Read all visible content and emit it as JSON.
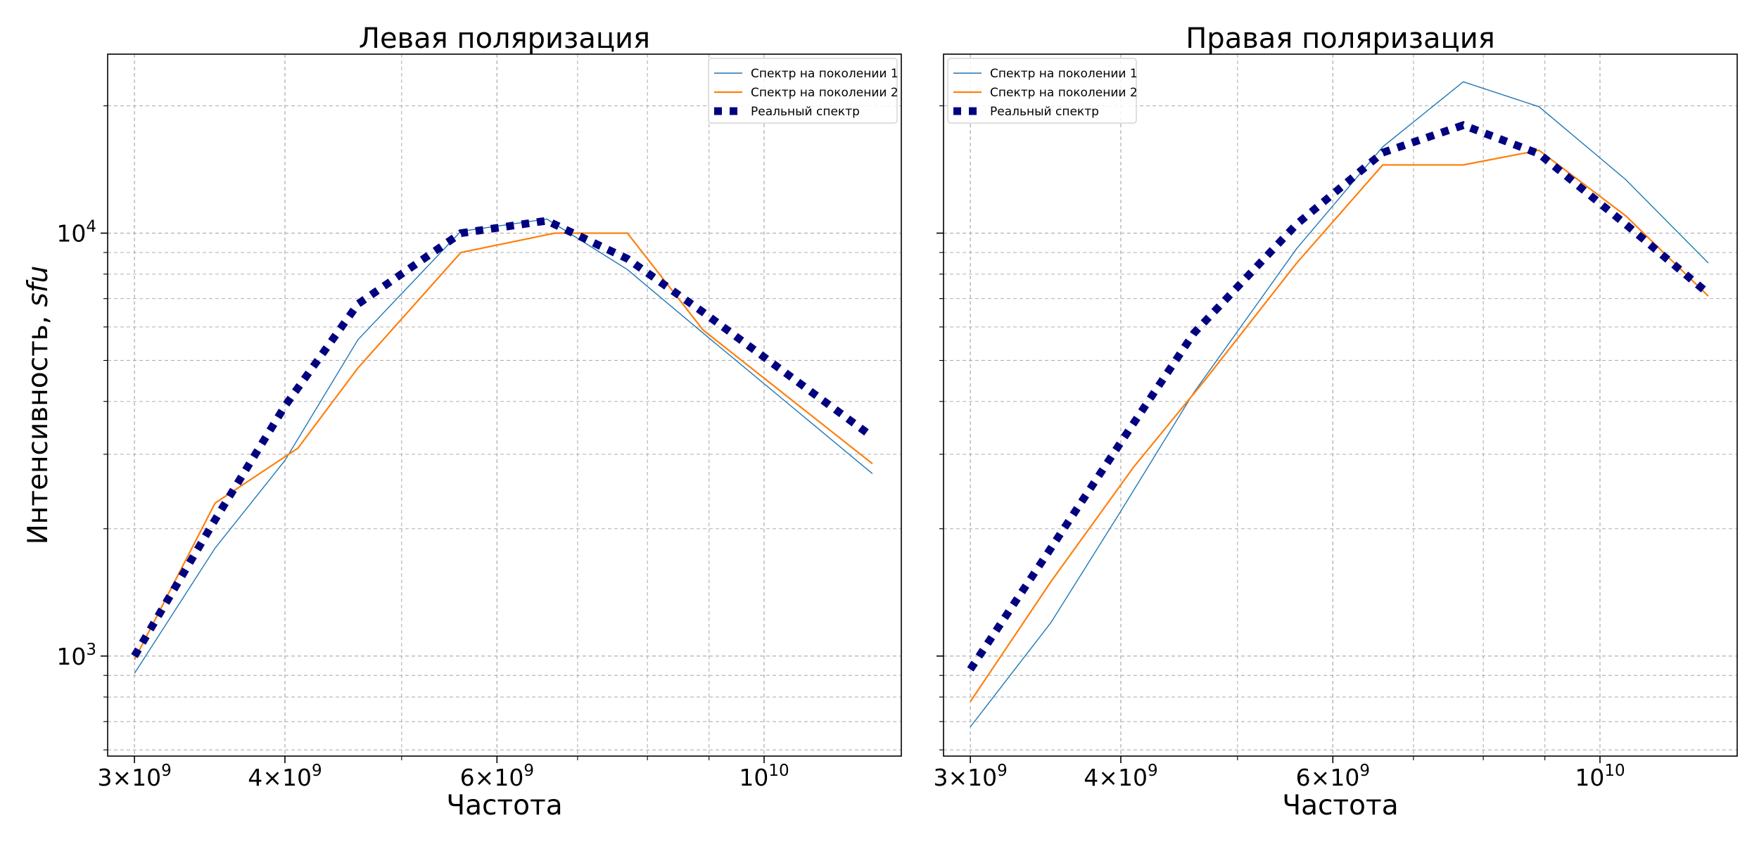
{
  "chart_data": [
    {
      "type": "line",
      "title": "Левая поляризация",
      "xlabel": "Частота",
      "ylabel": "Интенсивность, sfu",
      "xscale": "log",
      "yscale": "log",
      "xlim": [
        2850000000.0,
        13000000000.0
      ],
      "ylim": [
        580,
        26500
      ],
      "xticks": [
        {
          "value": 3000000000.0,
          "mant": "3",
          "exp": "9"
        },
        {
          "value": 4000000000.0,
          "mant": "4",
          "exp": "9"
        },
        {
          "value": 6000000000.0,
          "mant": "6",
          "exp": "9"
        },
        {
          "value": 10000000000.0,
          "mant": "",
          "exp": "10"
        }
      ],
      "yticks": [
        {
          "value": 1000,
          "exp": "3"
        },
        {
          "value": 10000,
          "exp": "4"
        }
      ],
      "grid": true,
      "legend_position": "top-right",
      "series": [
        {
          "name": "Спектр на поколении 1",
          "color": "#1f77b4",
          "style": "thin",
          "x": [
            3000000000.0,
            3500000000.0,
            4000000000.0,
            4600000000.0,
            5600000000.0,
            6600000000.0,
            7700000000.0,
            8900000000.0,
            12300000000.0
          ],
          "y": [
            910,
            1800,
            2900,
            5600,
            10100,
            10800,
            8200,
            5800,
            2700
          ]
        },
        {
          "name": "Спектр на поколении 2",
          "color": "#ff7f0e",
          "style": "normal",
          "x": [
            3000000000.0,
            3500000000.0,
            4100000000.0,
            4600000000.0,
            5600000000.0,
            6700000000.0,
            7700000000.0,
            8900000000.0,
            12300000000.0
          ],
          "y": [
            980,
            2300,
            3100,
            4800,
            9000,
            10000,
            10000,
            5900,
            2850
          ]
        },
        {
          "name": "Реальный спектр",
          "color": "#000080",
          "style": "dotted",
          "x": [
            3000000000.0,
            3500000000.0,
            4000000000.0,
            4600000000.0,
            5600000000.0,
            6600000000.0,
            7700000000.0,
            8900000000.0,
            12300000000.0
          ],
          "y": [
            1000,
            2100,
            3900,
            6800,
            10000,
            10700,
            8700,
            6500,
            3300
          ]
        }
      ]
    },
    {
      "type": "line",
      "title": "Правая поляризация",
      "xlabel": "Частота",
      "ylabel": "",
      "xscale": "log",
      "yscale": "log",
      "xlim": [
        2850000000.0,
        13000000000.0
      ],
      "ylim": [
        580,
        26500
      ],
      "xticks": [
        {
          "value": 3000000000.0,
          "mant": "3",
          "exp": "9"
        },
        {
          "value": 4000000000.0,
          "mant": "4",
          "exp": "9"
        },
        {
          "value": 6000000000.0,
          "mant": "6",
          "exp": "9"
        },
        {
          "value": 10000000000.0,
          "mant": "",
          "exp": "10"
        }
      ],
      "yticks": [],
      "grid": true,
      "legend_position": "top-left",
      "series": [
        {
          "name": "Спектр на поколении 1",
          "color": "#1f77b4",
          "style": "thin",
          "x": [
            3000000000.0,
            3500000000.0,
            4000000000.0,
            4600000000.0,
            5600000000.0,
            6600000000.0,
            7700000000.0,
            8900000000.0,
            10500000000.0,
            12300000000.0
          ],
          "y": [
            680,
            1200,
            2200,
            4200,
            9200,
            16000,
            22800,
            19900,
            13400,
            8500
          ]
        },
        {
          "name": "Спектр на поколении 2",
          "color": "#ff7f0e",
          "style": "normal",
          "x": [
            3000000000.0,
            3500000000.0,
            4100000000.0,
            4700000000.0,
            5600000000.0,
            6600000000.0,
            7700000000.0,
            8900000000.0,
            10500000000.0,
            12300000000.0
          ],
          "y": [
            780,
            1500,
            2800,
            4500,
            8500,
            14500,
            14500,
            15700,
            11000,
            7100
          ]
        },
        {
          "name": "Реальный спектр",
          "color": "#000080",
          "style": "dotted",
          "x": [
            3000000000.0,
            3500000000.0,
            4000000000.0,
            4600000000.0,
            5600000000.0,
            6600000000.0,
            7700000000.0,
            8900000000.0,
            10500000000.0,
            12300000000.0
          ],
          "y": [
            930,
            1800,
            3200,
            5800,
            10500,
            15500,
            18000,
            15400,
            10500,
            7200
          ]
        }
      ]
    }
  ]
}
